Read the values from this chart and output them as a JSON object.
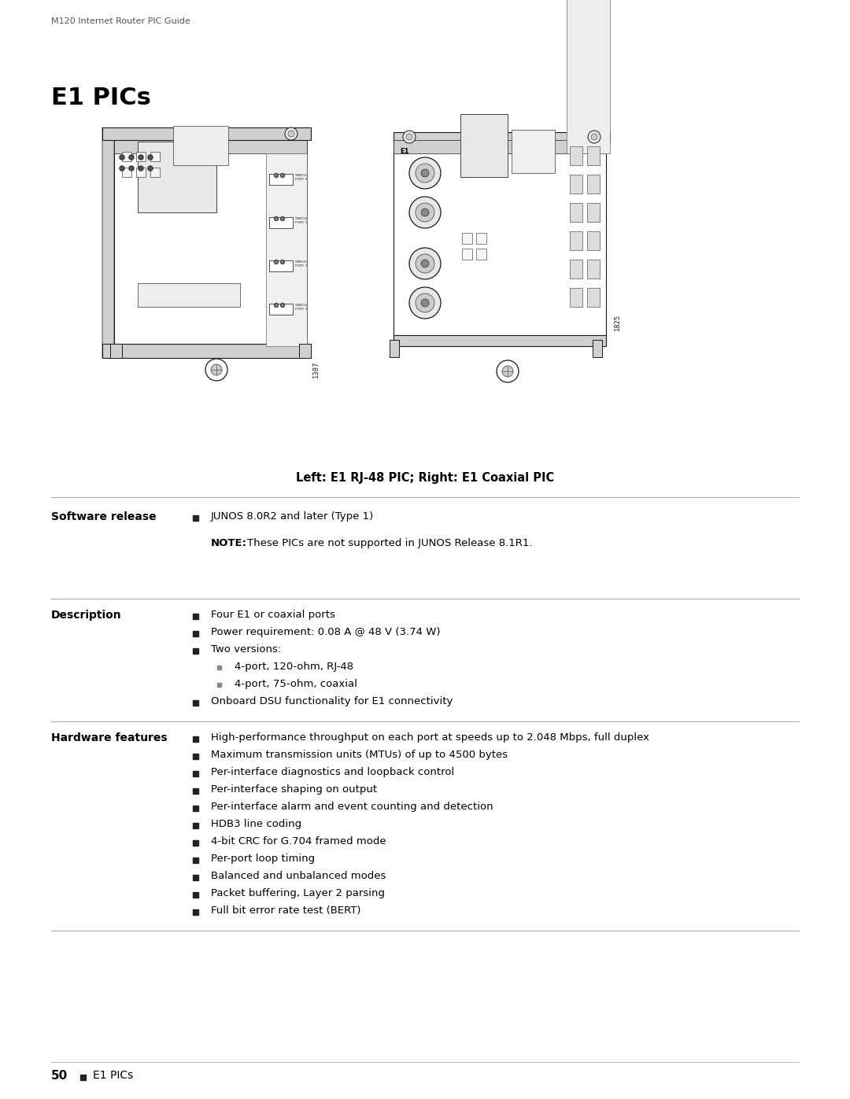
{
  "page_header": "M120 Internet Router PIC Guide",
  "title": "E1 PICs",
  "caption": "Left: E1 RJ-48 PIC; Right: E1 Coaxial PIC",
  "background_color": "#ffffff",
  "sections": [
    {
      "label": "Software release",
      "bullets": [
        {
          "text": "JUNOS 8.0R2 and later (Type 1)",
          "indent": 0
        }
      ],
      "note": "These PICs are not supported in JUNOS Release 8.1R1."
    },
    {
      "label": "Description",
      "bullets": [
        {
          "text": "Four E1 or coaxial ports",
          "indent": 0
        },
        {
          "text": "Power requirement: 0.08 A @ 48 V (3.74 W)",
          "indent": 0
        },
        {
          "text": "Two versions:",
          "indent": 0
        },
        {
          "text": "4-port, 120-ohm, RJ-48",
          "indent": 1
        },
        {
          "text": "4-port, 75-ohm, coaxial",
          "indent": 1
        },
        {
          "text": "Onboard DSU functionality for E1 connectivity",
          "indent": 0
        }
      ],
      "note": null
    },
    {
      "label": "Hardware features",
      "bullets": [
        {
          "text": "High-performance throughput on each port at speeds up to 2.048 Mbps, full duplex",
          "indent": 0
        },
        {
          "text": "Maximum transmission units (MTUs) of up to 4500 bytes",
          "indent": 0
        },
        {
          "text": "Per-interface diagnostics and loopback control",
          "indent": 0
        },
        {
          "text": "Per-interface shaping on output",
          "indent": 0
        },
        {
          "text": "Per-interface alarm and event counting and detection",
          "indent": 0
        },
        {
          "text": "HDB3 line coding",
          "indent": 0
        },
        {
          "text": "4-bit CRC for G.704 framed mode",
          "indent": 0
        },
        {
          "text": "Per-port loop timing",
          "indent": 0
        },
        {
          "text": "Balanced and unbalanced modes",
          "indent": 0
        },
        {
          "text": "Packet buffering, Layer 2 parsing",
          "indent": 0
        },
        {
          "text": "Full bit error rate test (BERT)",
          "indent": 0
        }
      ],
      "note": null
    }
  ],
  "footer_number": "50",
  "footer_label": "E1 PICs",
  "fig_num_left": "1387",
  "fig_num_right": "1825",
  "note_prefix": "NOTE:"
}
